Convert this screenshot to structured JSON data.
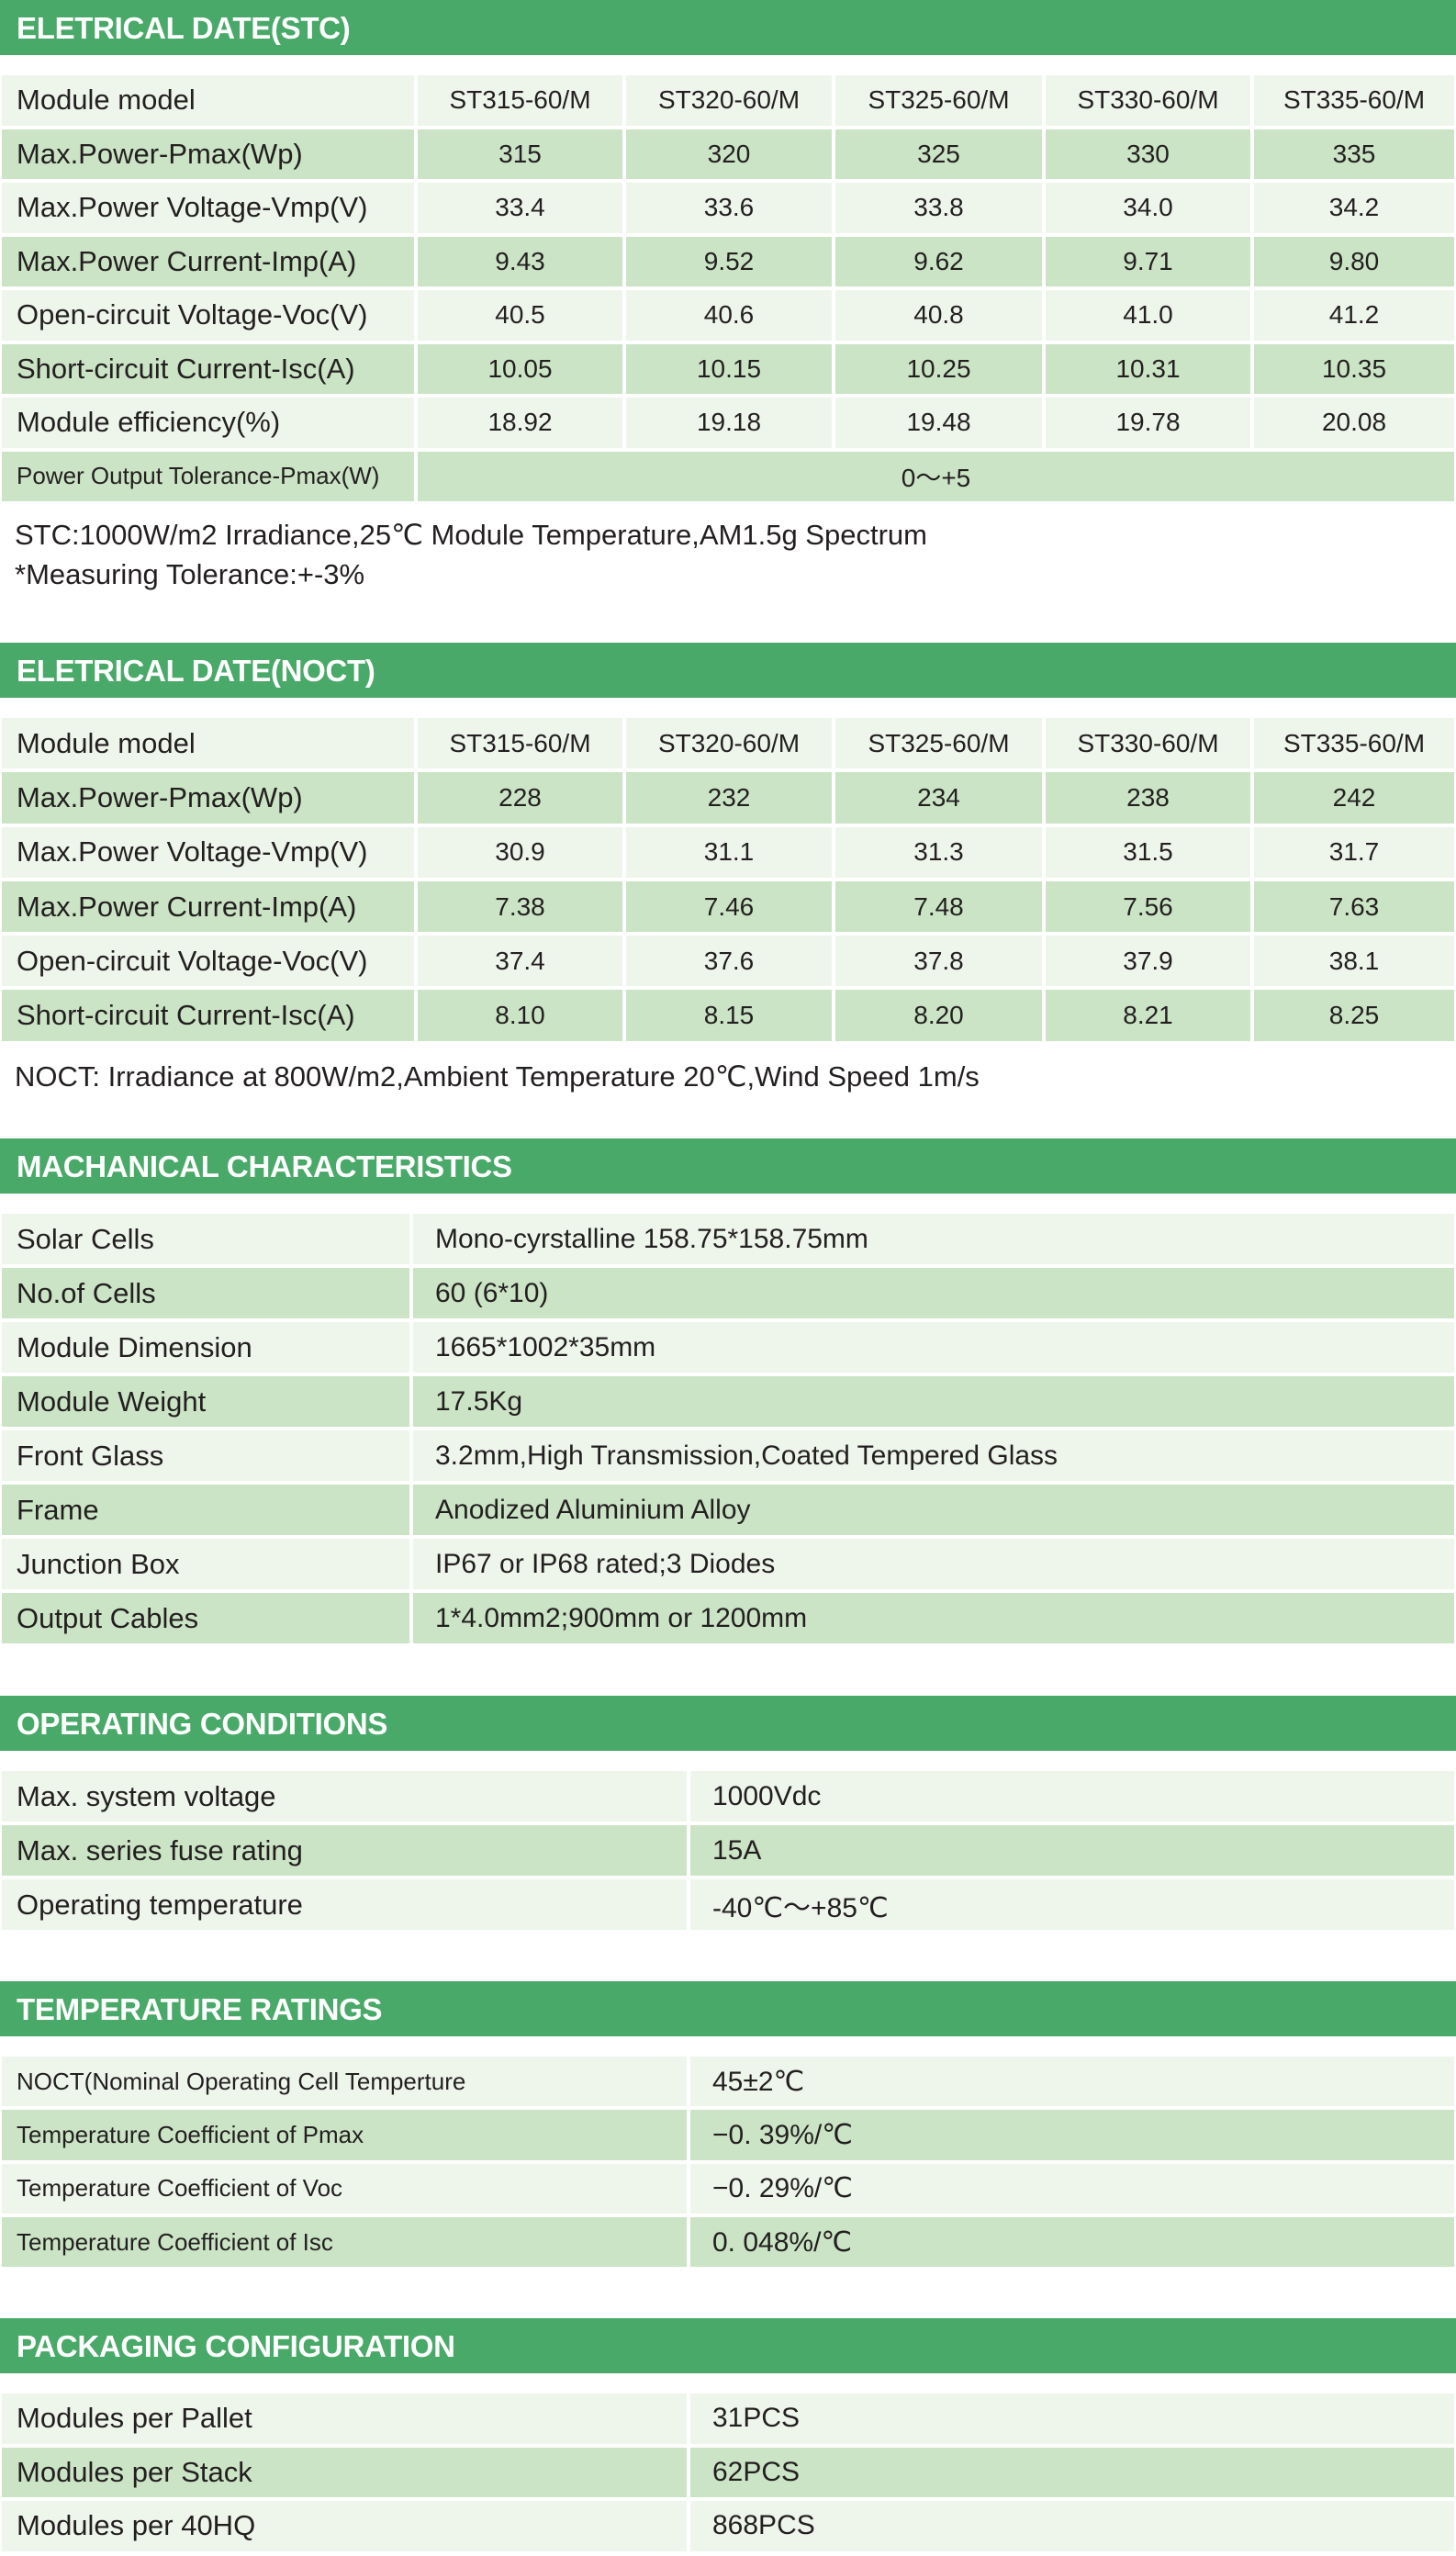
{
  "colors": {
    "header": "#49a968",
    "row_light": "#eef6ec",
    "row_mid": "#cbe4c5"
  },
  "sections": [
    {
      "title": "ELETRICAL DATE(STC)",
      "kind": "grid",
      "rows": [
        {
          "label": "Module model",
          "values": [
            "ST315-60/M",
            "ST320-60/M",
            "ST325-60/M",
            "ST330-60/M",
            "ST335-60/M"
          ]
        },
        {
          "label": "Max.Power-Pmax(Wp)",
          "values": [
            "315",
            "320",
            "325",
            "330",
            "335"
          ]
        },
        {
          "label": "Max.Power Voltage-Vmp(V)",
          "values": [
            "33.4",
            "33.6",
            "33.8",
            "34.0",
            "34.2"
          ]
        },
        {
          "label": "Max.Power Current-Imp(A)",
          "values": [
            "9.43",
            "9.52",
            "9.62",
            "9.71",
            "9.80"
          ]
        },
        {
          "label": "Open-circuit Voltage-Voc(V)",
          "values": [
            "40.5",
            "40.6",
            "40.8",
            "41.0",
            "41.2"
          ]
        },
        {
          "label": "Short-circuit Current-Isc(A)",
          "values": [
            "10.05",
            "10.15",
            "10.25",
            "10.31",
            "10.35"
          ]
        },
        {
          "label": "Module efficiency(%)",
          "values": [
            "18.92",
            "19.18",
            "19.48",
            "19.78",
            "20.08"
          ]
        },
        {
          "label": "Power Output Tolerance-Pmax(W)",
          "values": [
            "0～+5"
          ]
        }
      ],
      "notes": [
        "STC:1000W/m2 Irradiance,25℃ Module Temperature,AM1.5g Spectrum",
        "*Measuring Tolerance:+-3%"
      ]
    },
    {
      "title": "ELETRICAL DATE(NOCT)",
      "kind": "grid",
      "rows": [
        {
          "label": "Module model",
          "values": [
            "ST315-60/M",
            "ST320-60/M",
            "ST325-60/M",
            "ST330-60/M",
            "ST335-60/M"
          ]
        },
        {
          "label": "Max.Power-Pmax(Wp)",
          "values": [
            "228",
            "232",
            "234",
            "238",
            "242"
          ]
        },
        {
          "label": "Max.Power Voltage-Vmp(V)",
          "values": [
            "30.9",
            "31.1",
            "31.3",
            "31.5",
            "31.7"
          ]
        },
        {
          "label": "Max.Power Current-Imp(A)",
          "values": [
            "7.38",
            "7.46",
            "7.48",
            "7.56",
            "7.63"
          ]
        },
        {
          "label": "Open-circuit Voltage-Voc(V)",
          "values": [
            "37.4",
            "37.6",
            "37.8",
            "37.9",
            "38.1"
          ]
        },
        {
          "label": "Short-circuit Current-Isc(A)",
          "values": [
            "8.10",
            "8.15",
            "8.20",
            "8.21",
            "8.25"
          ]
        }
      ],
      "notes": [
        "NOCT: Irradiance at 800W/m2,Ambient Temperature 20℃,Wind Speed 1m/s"
      ]
    },
    {
      "title": "MACHANICAL CHARACTERISTICS",
      "kind": "mech",
      "rows": [
        {
          "label": "Solar Cells",
          "values": [
            "Mono-cyrstalline 158.75*158.75mm"
          ]
        },
        {
          "label": "No.of Cells",
          "values": [
            "60 (6*10)"
          ]
        },
        {
          "label": "Module Dimension",
          "values": [
            "1665*1002*35mm"
          ]
        },
        {
          "label": "Module Weight",
          "values": [
            "17.5Kg"
          ]
        },
        {
          "label": "Front Glass",
          "values": [
            "3.2mm,High Transmission,Coated Tempered Glass"
          ]
        },
        {
          "label": "Frame",
          "values": [
            "Anodized Aluminium Alloy"
          ]
        },
        {
          "label": "Junction Box",
          "values": [
            "IP67 or IP68 rated;3 Diodes"
          ]
        },
        {
          "label": "Output Cables",
          "values": [
            "1*4.0mm2;900mm or 1200mm"
          ]
        }
      ],
      "notes": []
    },
    {
      "title": "OPERATING CONDITIONS",
      "kind": "kv",
      "rows": [
        {
          "label": "Max. system voltage",
          "values": [
            "1000Vdc"
          ]
        },
        {
          "label": "Max. series fuse rating",
          "values": [
            "15A"
          ]
        },
        {
          "label": "Operating temperature",
          "values": [
            "-40℃～+85℃"
          ]
        }
      ],
      "notes": []
    },
    {
      "title": "TEMPERATURE RATINGS",
      "kind": "kv",
      "rows": [
        {
          "label": "NOCT(Nominal Operating Cell Temperture",
          "values": [
            "45±2℃"
          ]
        },
        {
          "label": "Temperature Coefficient of Pmax",
          "values": [
            "−0. 39%/℃"
          ]
        },
        {
          "label": "Temperature Coefficient of Voc",
          "values": [
            "−0. 29%/℃"
          ]
        },
        {
          "label": "Temperature Coefficient of Isc",
          "values": [
            "0. 048%/℃"
          ]
        }
      ],
      "notes": []
    },
    {
      "title": "PACKAGING  CONFIGURATION",
      "kind": "kv",
      "rows": [
        {
          "label": "Modules  per  Pallet",
          "values": [
            "31PCS"
          ]
        },
        {
          "label": "Modules  per  Stack",
          "values": [
            "62PCS"
          ]
        },
        {
          "label": "Modules  per  40HQ",
          "values": [
            "868PCS"
          ]
        }
      ],
      "notes": []
    }
  ]
}
